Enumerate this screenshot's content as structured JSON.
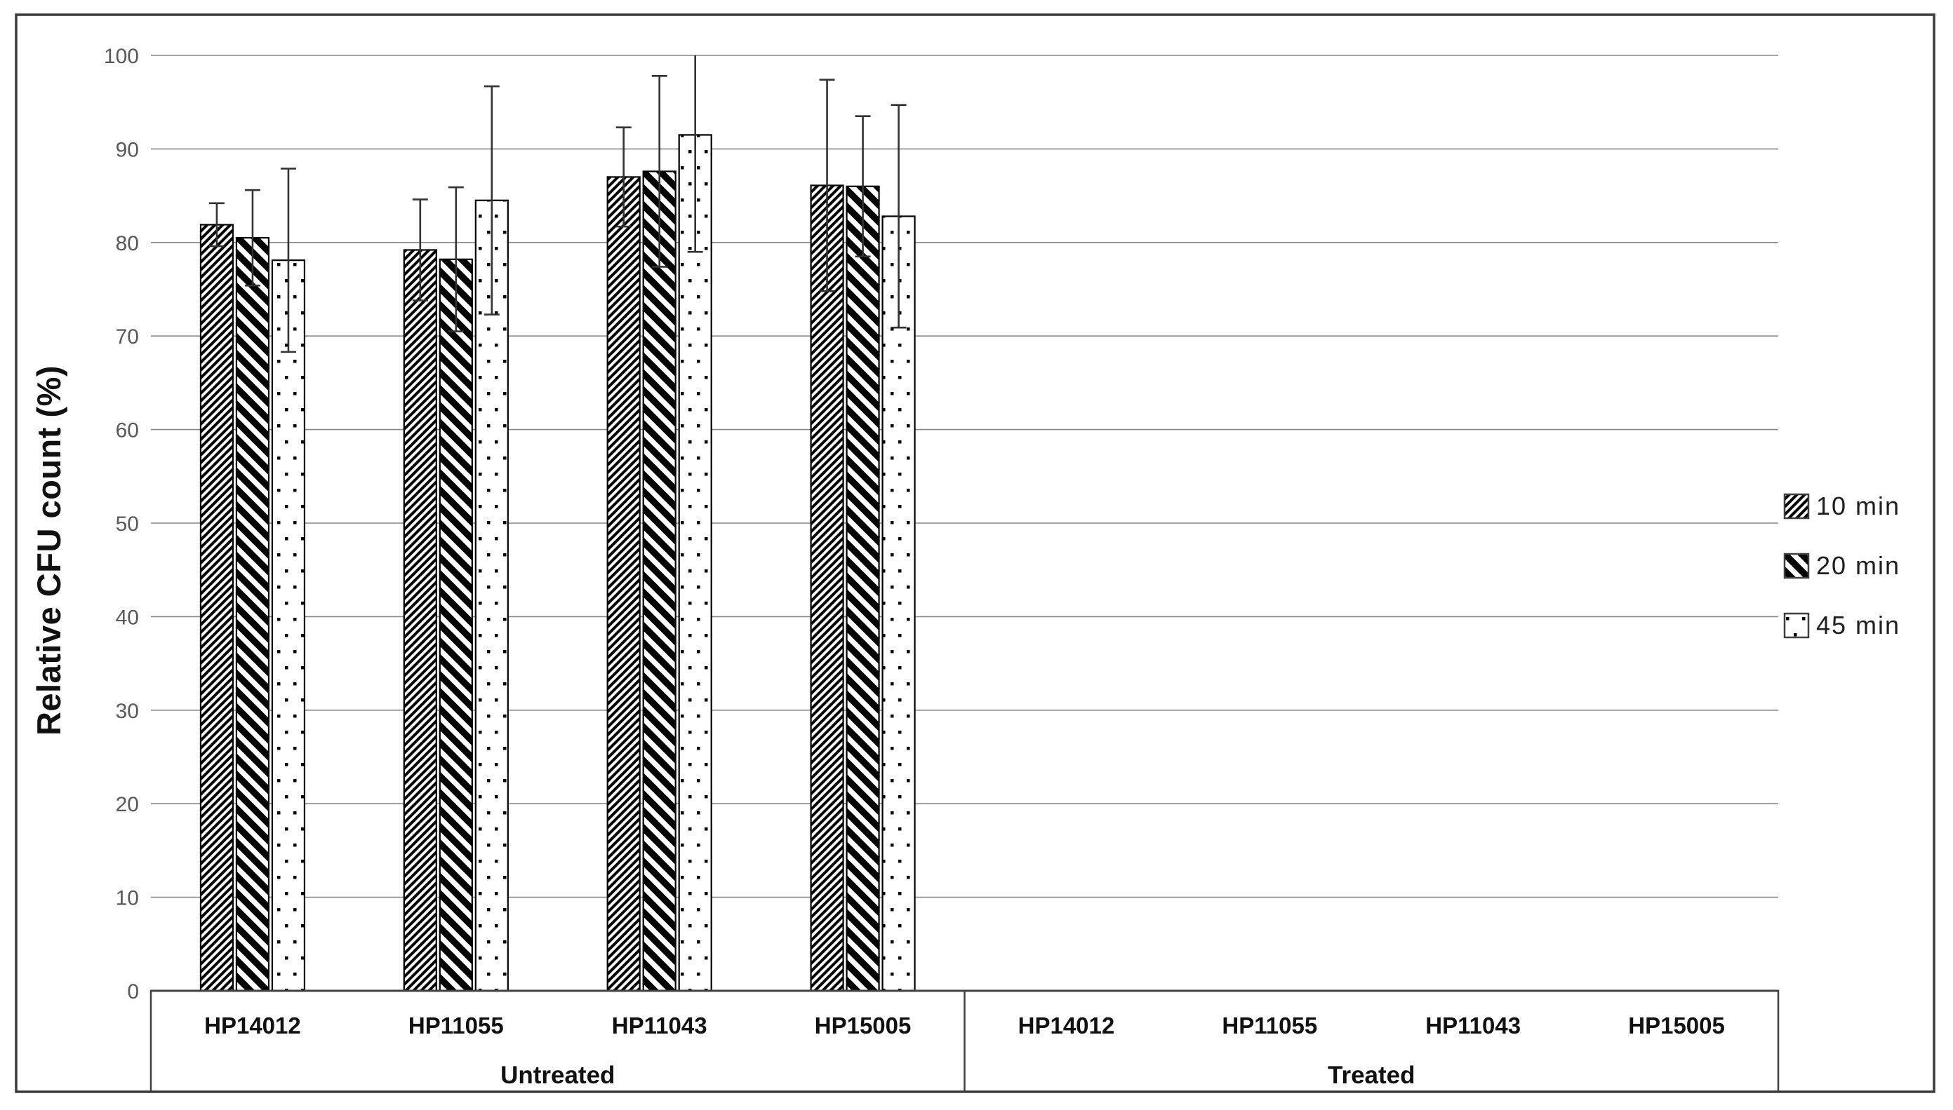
{
  "chart_data": {
    "type": "bar",
    "title": "",
    "xlabel": "",
    "ylabel": "Relative CFU count (%)",
    "ylim": [
      0,
      100
    ],
    "yticks": [
      0,
      10,
      20,
      30,
      40,
      50,
      60,
      70,
      80,
      90,
      100
    ],
    "grid": true,
    "legend_position": "right-middle",
    "series_names": [
      "10 min",
      "20 min",
      "45 min"
    ],
    "series_patterns": [
      "thin-forward-diagonal-hatch",
      "thick-backward-diagonal-hatch",
      "sparse-square-dots"
    ],
    "error_bars": "symmetric, clipped at y=100",
    "groups": [
      {
        "label": "Untreated",
        "categories": [
          "HP14012",
          "HP11055",
          "HP11043",
          "HP15005"
        ],
        "series": [
          {
            "name": "10 min",
            "values": [
              81.9,
              79.2,
              87.0,
              86.1
            ],
            "errors": [
              2.3,
              5.4,
              5.3,
              11.3
            ]
          },
          {
            "name": "20 min",
            "values": [
              80.5,
              78.2,
              87.6,
              86.0
            ],
            "errors": [
              5.1,
              7.7,
              10.2,
              7.5
            ]
          },
          {
            "name": "45 min",
            "values": [
              78.1,
              84.5,
              91.5,
              82.8
            ],
            "errors": [
              9.8,
              12.2,
              12.5,
              11.9
            ]
          }
        ]
      },
      {
        "label": "Treated",
        "categories": [
          "HP14012",
          "HP11055",
          "HP11043",
          "HP15005"
        ],
        "series": [
          {
            "name": "10 min",
            "values": [
              0,
              0,
              0,
              0
            ],
            "errors": [
              0,
              0,
              0,
              0
            ]
          },
          {
            "name": "20 min",
            "values": [
              0,
              0,
              0,
              0
            ],
            "errors": [
              0,
              0,
              0,
              0
            ]
          },
          {
            "name": "45 min",
            "values": [
              0,
              0,
              0,
              0
            ],
            "errors": [
              0,
              0,
              0,
              0
            ]
          }
        ]
      }
    ],
    "colors": {
      "bars": "#000000",
      "grid": "#878787",
      "axis": "#404040",
      "frame": "#3b3b3b",
      "tick_text": "#595959",
      "label_text": "#111111",
      "error_bar": "#333333"
    }
  },
  "legend": {
    "items": [
      "10 min",
      "20 min",
      "45 min"
    ]
  }
}
